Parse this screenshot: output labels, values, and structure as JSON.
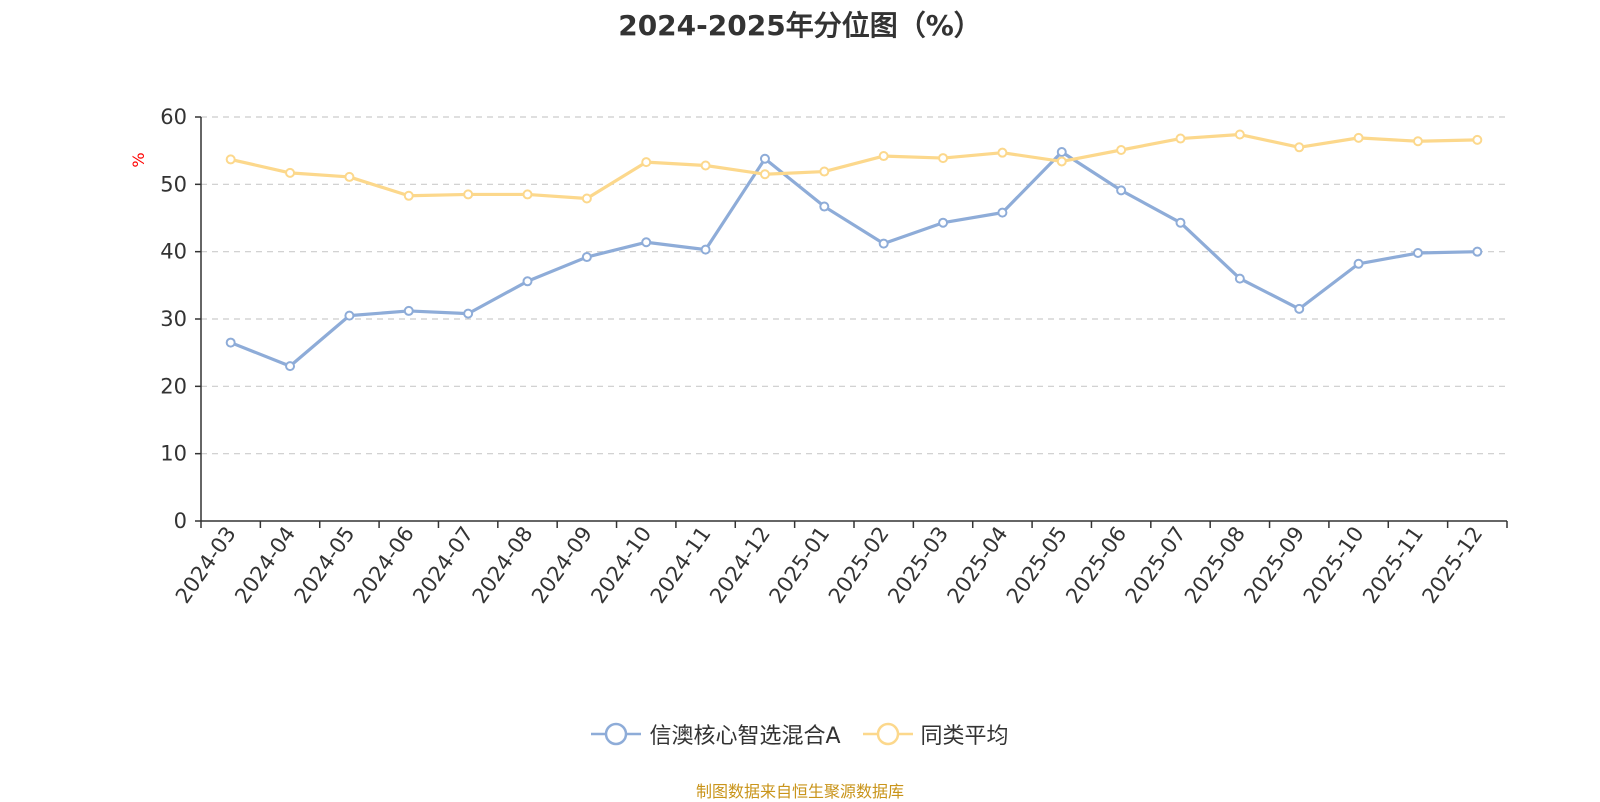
{
  "chart_data": {
    "type": "line",
    "title": "2024-2025年分位图（%）",
    "ylabel": "%",
    "xlabel": "",
    "ylim": [
      0,
      60
    ],
    "yticks": [
      0,
      10,
      20,
      30,
      40,
      50,
      60
    ],
    "grid": true,
    "legend_position": "bottom-center",
    "categories": [
      "2024-03",
      "2024-04",
      "2024-05",
      "2024-06",
      "2024-07",
      "2024-08",
      "2024-09",
      "2024-10",
      "2024-11",
      "2024-12",
      "2025-01",
      "2025-02",
      "2025-03",
      "2025-04",
      "2025-05",
      "2025-06",
      "2025-07",
      "2025-08",
      "2025-09",
      "2025-10",
      "2025-11",
      "2025-12"
    ],
    "series": [
      {
        "name": "信澳核心智选混合A",
        "color": "#8eacd8",
        "values": [
          26.5,
          23.0,
          30.5,
          31.2,
          30.8,
          35.6,
          39.2,
          41.4,
          40.3,
          53.8,
          46.7,
          41.2,
          44.3,
          45.8,
          54.8,
          49.1,
          44.3,
          36.0,
          31.5,
          38.2,
          39.8,
          40.0
        ]
      },
      {
        "name": "同类平均",
        "color": "#fcd88c",
        "values": [
          53.7,
          51.7,
          51.1,
          48.3,
          48.5,
          48.5,
          47.9,
          53.3,
          52.8,
          51.5,
          51.9,
          54.2,
          53.9,
          54.7,
          53.4,
          55.1,
          56.8,
          57.4,
          55.5,
          56.9,
          56.4,
          56.6
        ]
      }
    ]
  },
  "footer": {
    "source": "制图数据来自恒生聚源数据库"
  },
  "colors": {
    "axis": "#333333",
    "grid": "#cccccc",
    "ylabel": "#ff0000",
    "source": "#c9941a"
  }
}
